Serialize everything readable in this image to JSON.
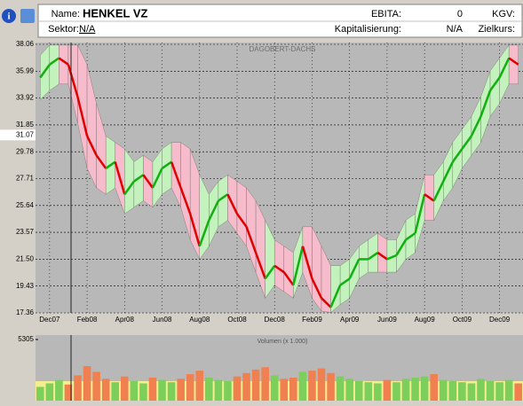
{
  "header": {
    "name_label": "Name:",
    "name": "HENKEL VZ",
    "ebita_label": "EBITA:",
    "ebita": 0,
    "kgv_label": "KGV:",
    "sektor_label": "Sektor:",
    "sektor": "N/A",
    "kap_label": "Kapitalisierung:",
    "kap": "N/A",
    "ziel_label": "Zielkurs:"
  },
  "chart_data": [
    {
      "type": "band",
      "annotation": "DAGOBERT-DACHS",
      "marker": 31.07,
      "categories": [
        null,
        "Dec07",
        null,
        null,
        null,
        "Feb08",
        null,
        null,
        null,
        "Apr08",
        null,
        null,
        null,
        "Jun08",
        null,
        null,
        null,
        "Aug08",
        null,
        null,
        null,
        "Oct08",
        null,
        null,
        null,
        "Dec08",
        null,
        null,
        null,
        "Feb09",
        null,
        null,
        null,
        "Apr09",
        null,
        null,
        null,
        "Jun09",
        null,
        null,
        null,
        "Aug09",
        null,
        null,
        null,
        "Oct09",
        null,
        null,
        null,
        "Dec09",
        null,
        null
      ],
      "series": [
        {
          "values": [
            35.5,
            36.5,
            37.0,
            36.5,
            34.0,
            31.0,
            29.5,
            28.5,
            29.0,
            26.5,
            27.5,
            28.0,
            27.0,
            28.5,
            29.0,
            27.0,
            25.0,
            22.5,
            24.5,
            26.0,
            26.5,
            25.0,
            24.0,
            22.0,
            20.0,
            21.0,
            20.5,
            19.5,
            22.5,
            20.0,
            18.5,
            17.8,
            19.5,
            20.0,
            21.5,
            21.5,
            22.0,
            21.5,
            21.8,
            23.0,
            23.5,
            26.5,
            26.0,
            27.5,
            29.0,
            30.0,
            31.0,
            32.5,
            34.5,
            35.5,
            37.0,
            36.5
          ]
        },
        {
          "values": [
            37.2,
            38.0,
            38.0,
            38.0,
            38.0,
            36.5,
            33.5,
            31.0,
            30.5,
            30.0,
            29.0,
            29.5,
            29.0,
            30.0,
            30.5,
            30.5,
            30.0,
            28.0,
            26.5,
            27.5,
            28.0,
            27.5,
            27.0,
            26.0,
            24.5,
            23.0,
            22.5,
            22.0,
            24.0,
            24.0,
            22.5,
            21.0,
            21.0,
            21.5,
            22.5,
            23.0,
            23.5,
            23.0,
            23.0,
            24.5,
            25.0,
            28.0,
            28.0,
            29.0,
            30.5,
            31.5,
            32.5,
            34.0,
            36.0,
            37.0,
            38.0,
            38.0
          ]
        },
        {
          "values": [
            33.8,
            34.5,
            35.0,
            35.0,
            32.0,
            28.5,
            27.0,
            26.5,
            27.0,
            25.0,
            25.5,
            26.0,
            25.5,
            26.5,
            27.0,
            25.5,
            23.0,
            21.5,
            22.5,
            24.0,
            24.5,
            23.5,
            22.5,
            20.5,
            18.5,
            19.5,
            19.0,
            18.5,
            20.5,
            18.5,
            17.5,
            17.4,
            18.0,
            18.5,
            20.0,
            20.5,
            20.5,
            20.5,
            20.5,
            21.5,
            22.0,
            24.5,
            24.5,
            26.0,
            27.0,
            28.5,
            29.5,
            30.5,
            32.5,
            33.5,
            35.0,
            35.0
          ]
        }
      ],
      "up_color": "#10b010",
      "down_color": "#e00000",
      "band_up_color": "#c4f2bc",
      "band_down_color": "#f7bccb",
      "ylim": [
        17.36,
        38.06
      ],
      "yticks": [
        38.06,
        35.99,
        33.92,
        31.85,
        29.78,
        27.71,
        25.64,
        23.57,
        {
          "value": 21.5,
          "label": "21.50"
        },
        19.43,
        17.36
      ],
      "grid": true
    },
    {
      "type": "bar",
      "title": "Volumen (x 1.000)",
      "values": [
        1200,
        1500,
        1800,
        1400,
        2200,
        3000,
        2500,
        1900,
        1600,
        2100,
        1700,
        1500,
        2000,
        1800,
        1600,
        1900,
        2300,
        2600,
        2000,
        1800,
        1700,
        2100,
        2400,
        2700,
        2900,
        2200,
        1900,
        2000,
        2500,
        2600,
        2800,
        2400,
        2100,
        1900,
        1700,
        1600,
        1500,
        1800,
        1600,
        1900,
        2000,
        2100,
        2300,
        1800,
        1700,
        1600,
        1500,
        1900,
        1700,
        1600,
        1800,
        1500
      ],
      "up_color": "#7ccf5a",
      "down_color": "#f08050",
      "ylim": [
        0,
        5305
      ],
      "yticks": [
        5305
      ]
    }
  ]
}
